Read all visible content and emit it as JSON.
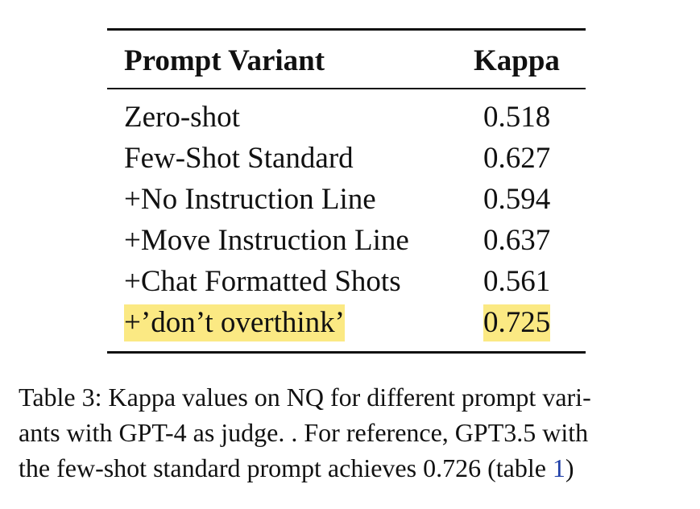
{
  "table": {
    "headers": {
      "variant": "Prompt Variant",
      "kappa": "Kappa"
    },
    "rows": [
      {
        "variant": "Zero-shot",
        "kappa": "0.518",
        "highlight": false
      },
      {
        "variant": "Few-Shot Standard",
        "kappa": "0.627",
        "highlight": false
      },
      {
        "variant": "+No Instruction Line",
        "kappa": "0.594",
        "highlight": false
      },
      {
        "variant": "+Move Instruction Line",
        "kappa": "0.637",
        "highlight": false
      },
      {
        "variant": "+Chat Formatted Shots",
        "kappa": "0.561",
        "highlight": false
      },
      {
        "variant": "+’don’t overthink’",
        "kappa": "0.725",
        "highlight": true
      }
    ],
    "highlight_color": "#fbe983"
  },
  "caption": {
    "line1": "Table 3: Kappa values on NQ for different prompt vari-",
    "line2": "ants with GPT-4 as judge. . For reference, GPT3.5 with",
    "line3_prefix": "the few-shot standard prompt achieves 0.726 (table ",
    "line3_ref": "1",
    "line3_suffix": ")",
    "link_color": "#1f3fa8"
  }
}
